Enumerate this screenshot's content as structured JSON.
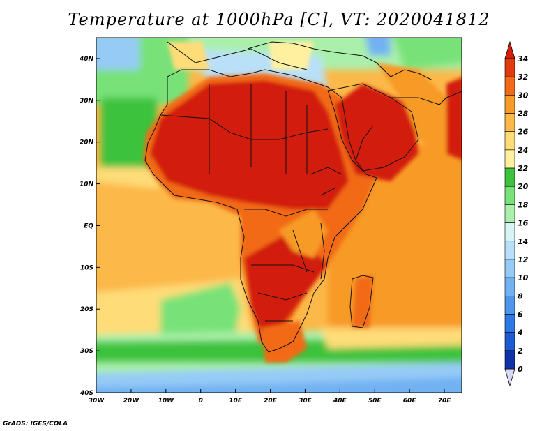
{
  "title": "Temperature at 1000hPa [C], VT: 2020041812",
  "credit": "GrADS: IGES/COLA",
  "map": {
    "lon_range": [
      -30,
      75
    ],
    "lat_range": [
      -40,
      45
    ],
    "lon_ticks": [
      {
        "value": -30,
        "label": "30W"
      },
      {
        "value": -20,
        "label": "20W"
      },
      {
        "value": -10,
        "label": "10W"
      },
      {
        "value": 0,
        "label": "0"
      },
      {
        "value": 10,
        "label": "10E"
      },
      {
        "value": 20,
        "label": "20E"
      },
      {
        "value": 30,
        "label": "30E"
      },
      {
        "value": 40,
        "label": "40E"
      },
      {
        "value": 50,
        "label": "50E"
      },
      {
        "value": 60,
        "label": "60E"
      },
      {
        "value": 70,
        "label": "70E"
      }
    ],
    "lat_ticks": [
      {
        "value": 40,
        "label": "40N"
      },
      {
        "value": 30,
        "label": "30N"
      },
      {
        "value": 20,
        "label": "20N"
      },
      {
        "value": 10,
        "label": "10N"
      },
      {
        "value": 0,
        "label": "EQ"
      },
      {
        "value": -10,
        "label": "10S"
      },
      {
        "value": -20,
        "label": "20S"
      },
      {
        "value": -30,
        "label": "30S"
      },
      {
        "value": -40,
        "label": "40S"
      }
    ]
  },
  "colorbar": {
    "levels": [
      {
        "label": "0",
        "color": "#0a1a6e"
      },
      {
        "label": "2",
        "color": "#1133a8"
      },
      {
        "label": "4",
        "color": "#1e5ad2"
      },
      {
        "label": "6",
        "color": "#2d78e6"
      },
      {
        "label": "8",
        "color": "#4d96ec"
      },
      {
        "label": "10",
        "color": "#72b2f2"
      },
      {
        "label": "12",
        "color": "#96cbf6"
      },
      {
        "label": "14",
        "color": "#b9e0f8"
      },
      {
        "label": "16",
        "color": "#d7f3f4"
      },
      {
        "label": "18",
        "color": "#aaf0aa"
      },
      {
        "label": "20",
        "color": "#78e278"
      },
      {
        "label": "22",
        "color": "#3cc23c"
      },
      {
        "label": "24",
        "color": "#fff0a0"
      },
      {
        "label": "26",
        "color": "#fedc78"
      },
      {
        "label": "28",
        "color": "#fcb848"
      },
      {
        "label": "30",
        "color": "#f89a28"
      },
      {
        "label": "32",
        "color": "#f26a18"
      },
      {
        "label": "34",
        "color": "#e03c10"
      }
    ],
    "top_color": "#d21e0a",
    "bottom_color": "#d8d8f2"
  }
}
